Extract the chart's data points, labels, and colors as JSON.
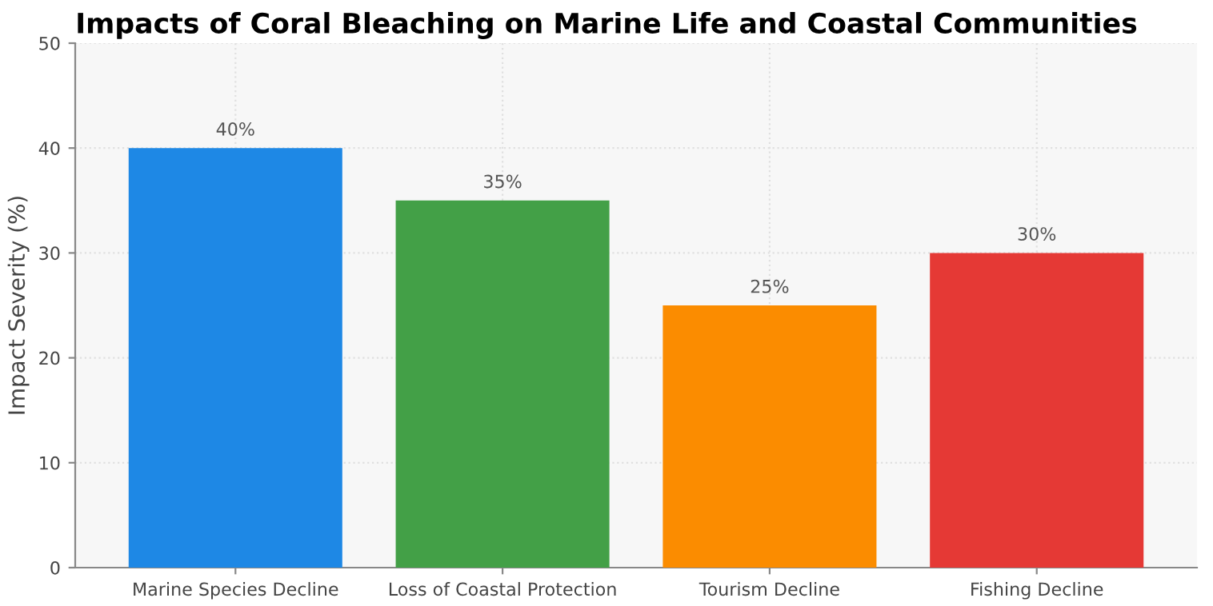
{
  "chart_data": {
    "type": "bar",
    "title": "Impacts of Coral Bleaching on Marine Life and Coastal Communities",
    "ylabel": "Impact Severity (%)",
    "categories": [
      "Marine Species Decline",
      "Loss of Coastal Protection",
      "Tourism Decline",
      "Fishing Decline"
    ],
    "values": [
      40,
      35,
      25,
      30
    ],
    "colors": [
      "#1e88e5",
      "#43a047",
      "#fb8c00",
      "#e53935"
    ],
    "value_labels": [
      "40%",
      "35%",
      "25%",
      "30%"
    ],
    "ylim": [
      0,
      50
    ],
    "yticks": [
      0,
      10,
      20,
      30,
      40,
      50
    ],
    "grid": true
  }
}
